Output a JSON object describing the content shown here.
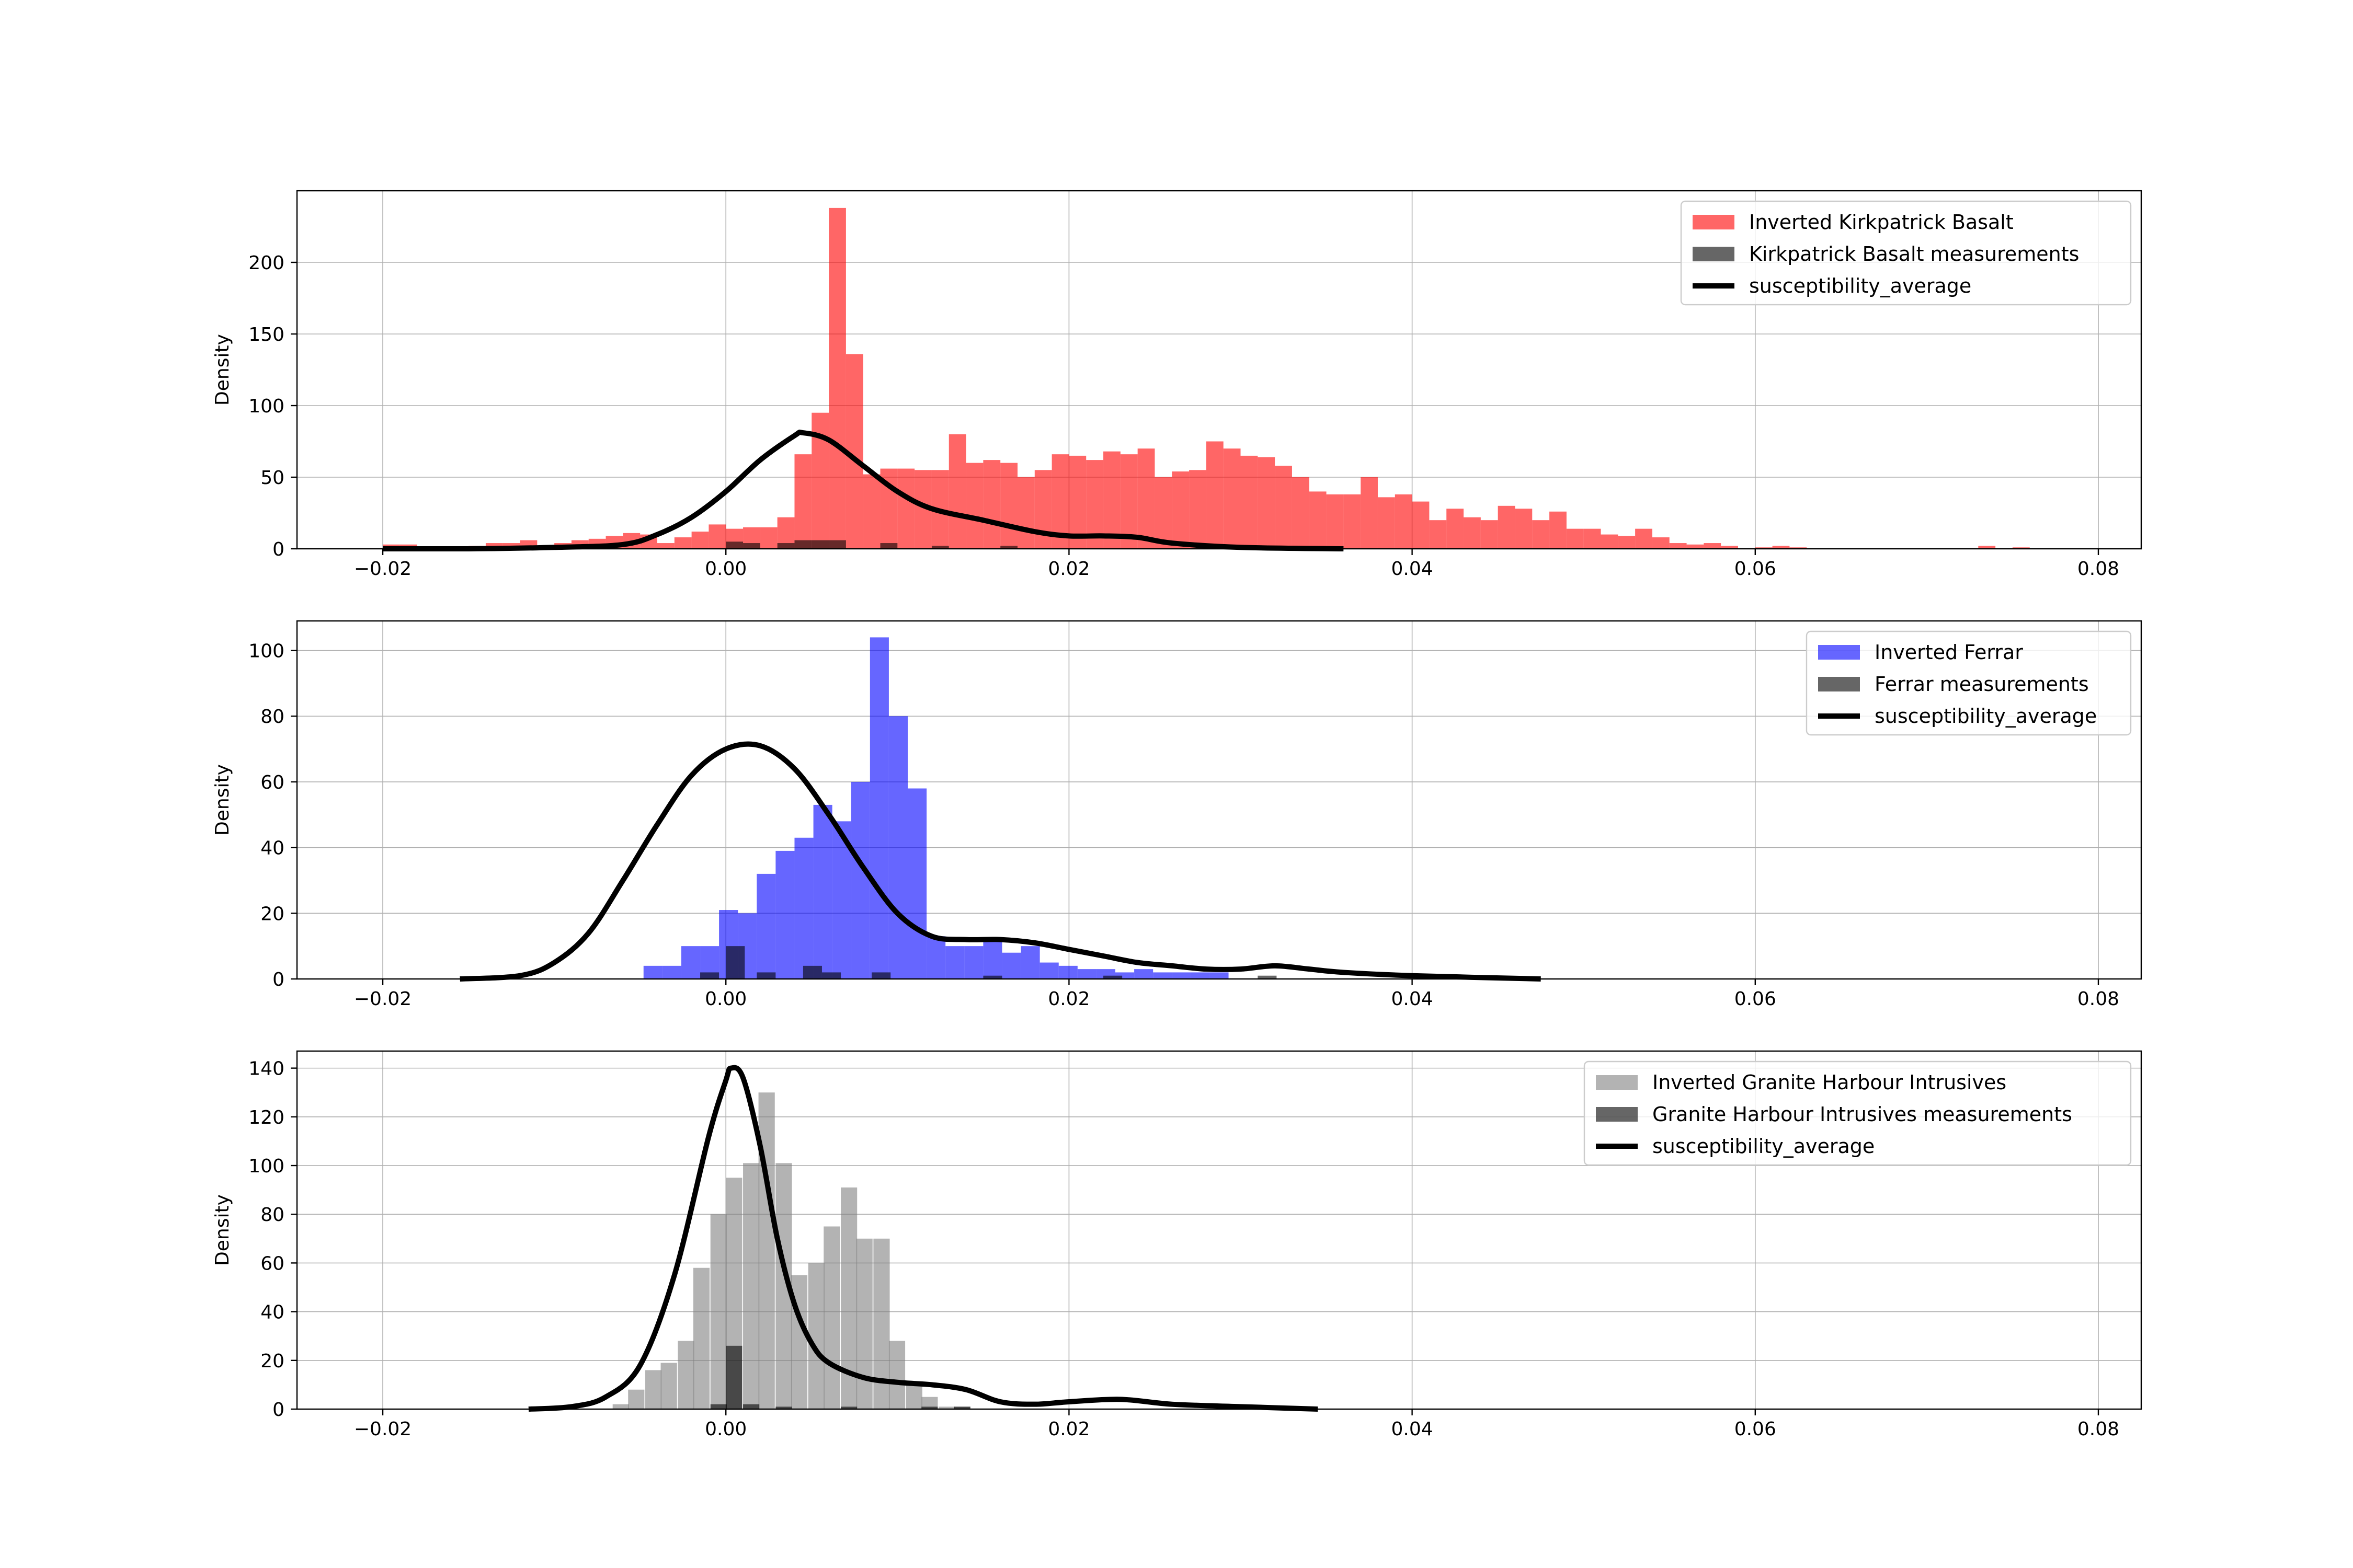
{
  "chart_data": [
    {
      "type": "histogram",
      "ylabel": "Density",
      "xlim": [
        -0.025,
        0.0825
      ],
      "ylim": [
        0,
        250
      ],
      "xticks": [
        "−0.02",
        "0.00",
        "0.02",
        "0.04",
        "0.06",
        "0.08"
      ],
      "xtick_values": [
        -0.02,
        0,
        0.02,
        0.04,
        0.06,
        0.08
      ],
      "yticks": [
        "0",
        "50",
        "100",
        "150",
        "200"
      ],
      "ytick_values": [
        0,
        50,
        100,
        150,
        200
      ],
      "grid": true,
      "legend_position": "top-right",
      "legend": [
        "Inverted Kirkpatrick Basalt",
        "Kirkpatrick Basalt measurements",
        "susceptibility_average"
      ],
      "colors": {
        "inverted": "#ff0000",
        "inverted_opacity": 0.6,
        "measurements": "#000000",
        "measurements_opacity": 0.6,
        "curve": "#000000"
      },
      "bin_width": 0.001,
      "inverted_bins": [
        [
          -0.02,
          3
        ],
        [
          -0.019,
          3
        ],
        [
          -0.016,
          1
        ],
        [
          -0.015,
          2
        ],
        [
          -0.014,
          4
        ],
        [
          -0.013,
          4
        ],
        [
          -0.012,
          6
        ],
        [
          -0.011,
          2
        ],
        [
          -0.01,
          4
        ],
        [
          -0.009,
          6
        ],
        [
          -0.008,
          7
        ],
        [
          -0.007,
          9
        ],
        [
          -0.006,
          11
        ],
        [
          -0.005,
          10
        ],
        [
          -0.004,
          4
        ],
        [
          -0.003,
          8
        ],
        [
          -0.002,
          12
        ],
        [
          -0.001,
          17
        ],
        [
          0.0,
          14
        ],
        [
          0.001,
          15
        ],
        [
          0.002,
          15
        ],
        [
          0.003,
          22
        ],
        [
          0.004,
          66
        ],
        [
          0.005,
          95
        ],
        [
          0.006,
          238
        ],
        [
          0.007,
          136
        ],
        [
          0.008,
          52
        ],
        [
          0.009,
          56
        ],
        [
          0.01,
          56
        ],
        [
          0.011,
          55
        ],
        [
          0.012,
          55
        ],
        [
          0.013,
          80
        ],
        [
          0.014,
          60
        ],
        [
          0.015,
          62
        ],
        [
          0.016,
          60
        ],
        [
          0.017,
          50
        ],
        [
          0.018,
          55
        ],
        [
          0.019,
          66
        ],
        [
          0.02,
          65
        ],
        [
          0.021,
          62
        ],
        [
          0.022,
          68
        ],
        [
          0.023,
          66
        ],
        [
          0.024,
          70
        ],
        [
          0.025,
          50
        ],
        [
          0.026,
          54
        ],
        [
          0.027,
          55
        ],
        [
          0.028,
          75
        ],
        [
          0.029,
          70
        ],
        [
          0.03,
          65
        ],
        [
          0.031,
          64
        ],
        [
          0.032,
          58
        ],
        [
          0.033,
          50
        ],
        [
          0.034,
          40
        ],
        [
          0.035,
          38
        ],
        [
          0.036,
          38
        ],
        [
          0.037,
          50
        ],
        [
          0.038,
          36
        ],
        [
          0.039,
          38
        ],
        [
          0.04,
          33
        ],
        [
          0.041,
          20
        ],
        [
          0.042,
          28
        ],
        [
          0.043,
          22
        ],
        [
          0.044,
          20
        ],
        [
          0.045,
          30
        ],
        [
          0.046,
          28
        ],
        [
          0.047,
          20
        ],
        [
          0.048,
          26
        ],
        [
          0.049,
          14
        ],
        [
          0.05,
          14
        ],
        [
          0.051,
          10
        ],
        [
          0.052,
          9
        ],
        [
          0.053,
          14
        ],
        [
          0.054,
          8
        ],
        [
          0.055,
          4
        ],
        [
          0.056,
          3
        ],
        [
          0.057,
          4
        ],
        [
          0.058,
          2
        ],
        [
          0.06,
          1
        ],
        [
          0.061,
          2
        ],
        [
          0.062,
          1
        ],
        [
          0.073,
          2
        ],
        [
          0.075,
          1
        ]
      ],
      "measurement_bins": [
        [
          0.0,
          5
        ],
        [
          0.001,
          4
        ],
        [
          0.003,
          4
        ],
        [
          0.004,
          6
        ],
        [
          0.005,
          6
        ],
        [
          0.006,
          6
        ],
        [
          0.009,
          4
        ],
        [
          0.012,
          2
        ],
        [
          0.016,
          2
        ]
      ],
      "curve_x": [
        -0.02,
        -0.015,
        -0.01,
        -0.006,
        -0.004,
        -0.002,
        0.0,
        0.002,
        0.004,
        0.0045,
        0.006,
        0.008,
        0.01,
        0.012,
        0.015,
        0.018,
        0.02,
        0.022,
        0.024,
        0.026,
        0.03,
        0.036
      ],
      "curve_y": [
        0,
        0,
        1,
        3,
        10,
        22,
        40,
        62,
        79,
        81,
        76,
        58,
        40,
        28,
        20,
        12,
        9,
        9,
        8,
        4,
        1,
        0
      ]
    },
    {
      "type": "histogram",
      "ylabel": "Density",
      "xlim": [
        -0.025,
        0.0825
      ],
      "ylim": [
        0,
        109
      ],
      "xticks": [
        "−0.02",
        "0.00",
        "0.02",
        "0.04",
        "0.06",
        "0.08"
      ],
      "xtick_values": [
        -0.02,
        0,
        0.02,
        0.04,
        0.06,
        0.08
      ],
      "yticks": [
        "0",
        "20",
        "40",
        "60",
        "80",
        "100"
      ],
      "ytick_values": [
        0,
        20,
        40,
        60,
        80,
        100
      ],
      "grid": true,
      "legend_position": "top-right",
      "legend": [
        "Inverted Ferrar",
        "Ferrar measurements",
        "susceptibility_average"
      ],
      "colors": {
        "inverted": "#0000ff",
        "inverted_opacity": 0.6,
        "measurements": "#000000",
        "measurements_opacity": 0.6,
        "curve": "#000000"
      },
      "bin_width": 0.0011,
      "inverted_bins": [
        [
          -0.0048,
          4
        ],
        [
          -0.0037,
          4
        ],
        [
          -0.0026,
          10
        ],
        [
          -0.0015,
          10
        ],
        [
          -0.0004,
          21
        ],
        [
          0.0007,
          20
        ],
        [
          0.0018,
          32
        ],
        [
          0.0029,
          39
        ],
        [
          0.004,
          43
        ],
        [
          0.0051,
          53
        ],
        [
          0.0062,
          48
        ],
        [
          0.0073,
          60
        ],
        [
          0.0084,
          104
        ],
        [
          0.0095,
          80
        ],
        [
          0.0106,
          58
        ],
        [
          0.0117,
          13
        ],
        [
          0.0128,
          10
        ],
        [
          0.0139,
          10
        ],
        [
          0.015,
          12
        ],
        [
          0.0161,
          8
        ],
        [
          0.0172,
          10
        ],
        [
          0.0183,
          5
        ],
        [
          0.0194,
          4
        ],
        [
          0.0205,
          3
        ],
        [
          0.0216,
          3
        ],
        [
          0.0227,
          2
        ],
        [
          0.0238,
          3
        ],
        [
          0.0249,
          2
        ],
        [
          0.026,
          2
        ],
        [
          0.0271,
          2
        ],
        [
          0.0282,
          2
        ]
      ],
      "measurement_bins": [
        [
          -0.0015,
          2
        ],
        [
          0.0,
          10
        ],
        [
          0.0018,
          2
        ],
        [
          0.0045,
          4
        ],
        [
          0.0056,
          2
        ],
        [
          0.0085,
          2
        ],
        [
          0.015,
          1
        ],
        [
          0.022,
          1
        ],
        [
          0.031,
          1
        ]
      ],
      "curve_x": [
        -0.0155,
        -0.012,
        -0.01,
        -0.008,
        -0.006,
        -0.004,
        -0.002,
        0.0,
        0.002,
        0.004,
        0.006,
        0.008,
        0.01,
        0.012,
        0.014,
        0.016,
        0.018,
        0.02,
        0.022,
        0.024,
        0.026,
        0.028,
        0.03,
        0.032,
        0.034,
        0.036,
        0.04,
        0.0475
      ],
      "curve_y": [
        0,
        1,
        5,
        14,
        30,
        47,
        62,
        70,
        71,
        64,
        50,
        34,
        20,
        13,
        12,
        12,
        11,
        9,
        7,
        5,
        4,
        3,
        3,
        4,
        3,
        2,
        1,
        0
      ]
    },
    {
      "type": "histogram",
      "ylabel": "Density",
      "xlim": [
        -0.025,
        0.0825
      ],
      "ylim": [
        0,
        147
      ],
      "xticks": [
        "−0.02",
        "0.00",
        "0.02",
        "0.04",
        "0.06",
        "0.08"
      ],
      "xtick_values": [
        -0.02,
        0,
        0.02,
        0.04,
        0.06,
        0.08
      ],
      "yticks": [
        "0",
        "20",
        "40",
        "60",
        "80",
        "100",
        "120",
        "140"
      ],
      "ytick_values": [
        0,
        20,
        40,
        60,
        80,
        100,
        120,
        140
      ],
      "grid": true,
      "legend_position": "top-right",
      "legend": [
        "Inverted Granite Harbour Intrusives",
        "Granite Harbour Intrusives measurements",
        "susceptibility_average"
      ],
      "colors": {
        "inverted": "#808080",
        "inverted_opacity": 0.6,
        "measurements": "#000000",
        "measurements_opacity": 0.6,
        "curve": "#000000"
      },
      "bin_width": 0.00095,
      "inverted_bins": [
        [
          -0.0066,
          2
        ],
        [
          -0.0057,
          8
        ],
        [
          -0.0047,
          16
        ],
        [
          -0.0038,
          19
        ],
        [
          -0.0028,
          28
        ],
        [
          -0.0019,
          58
        ],
        [
          -0.0009,
          80
        ],
        [
          0.0,
          95
        ],
        [
          0.001,
          101
        ],
        [
          0.0019,
          130
        ],
        [
          0.0029,
          101
        ],
        [
          0.0038,
          55
        ],
        [
          0.0048,
          60
        ],
        [
          0.0057,
          75
        ],
        [
          0.0067,
          91
        ],
        [
          0.0076,
          70
        ],
        [
          0.0086,
          70
        ],
        [
          0.0095,
          28
        ],
        [
          0.0105,
          11
        ],
        [
          0.0114,
          5
        ],
        [
          0.0124,
          1
        ],
        [
          0.0133,
          1
        ]
      ],
      "measurement_bins": [
        [
          -0.0009,
          2
        ],
        [
          0.0,
          26
        ],
        [
          0.001,
          2
        ],
        [
          0.0029,
          1
        ],
        [
          0.0067,
          1
        ],
        [
          0.0114,
          1
        ],
        [
          0.0133,
          1
        ]
      ],
      "curve_x": [
        -0.0115,
        -0.009,
        -0.007,
        -0.005,
        -0.003,
        -0.001,
        0.0,
        0.0003,
        0.001,
        0.002,
        0.003,
        0.004,
        0.005,
        0.006,
        0.008,
        0.01,
        0.012,
        0.014,
        0.016,
        0.018,
        0.02,
        0.023,
        0.026,
        0.03,
        0.0345
      ],
      "curve_y": [
        0,
        1,
        5,
        18,
        55,
        112,
        135,
        140,
        136,
        108,
        70,
        43,
        27,
        19,
        13,
        11,
        10,
        8,
        3,
        2,
        3,
        4,
        2,
        1,
        0
      ]
    }
  ]
}
